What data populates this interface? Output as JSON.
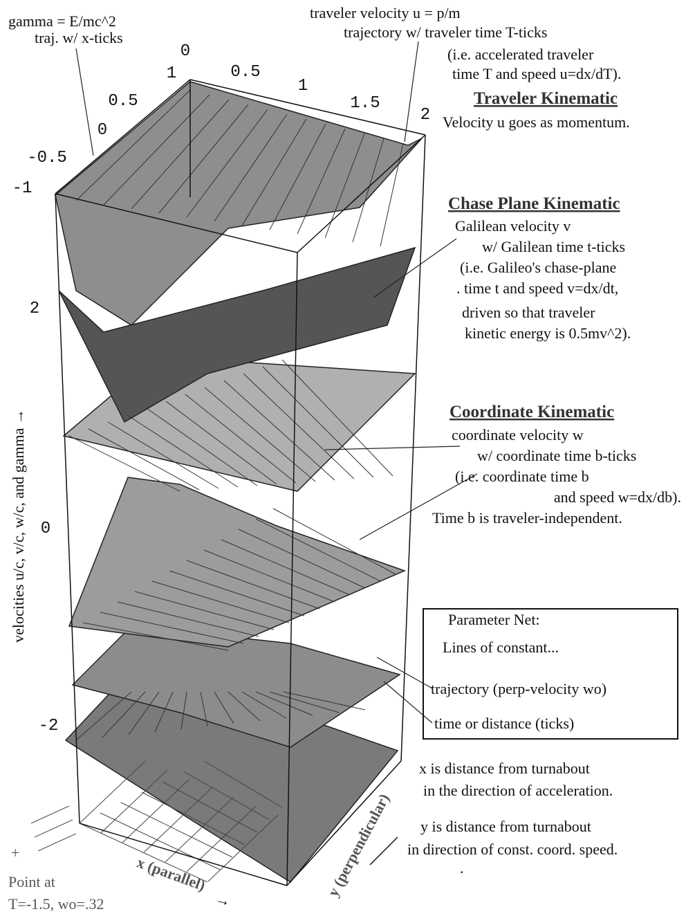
{
  "header": {
    "gamma": [
      "gamma = E/mc^2",
      "traj. w/ x-ticks"
    ],
    "traveler_velocity": [
      "traveler velocity u  = p/m",
      "trajectory w/ traveler time T-ticks",
      "(i.e. accelerated traveler",
      "time T and speed u=dx/dT)."
    ]
  },
  "sections": [
    {
      "title": "Traveler Kinematic",
      "lines": [
        "Velocity u goes as momentum."
      ]
    },
    {
      "title": "Chase Plane Kinematic",
      "lines": [
        "Galilean velocity v",
        "w/ Galilean time t-ticks",
        "(i.e. Galileo's chase-plane",
        ".   time t and speed v=dx/dt,",
        "driven so that traveler",
        "kinetic energy is 0.5mv^2)."
      ]
    },
    {
      "title": "Coordinate Kinematic",
      "lines": [
        "coordinate velocity w",
        "w/ coordinate time b-ticks",
        "(i.e. coordinate time b",
        "and speed w=dx/db).",
        "Time b is traveler-independent."
      ]
    }
  ],
  "legend": {
    "title": "Parameter Net:",
    "subtitle": "Lines of constant...",
    "items": [
      "trajectory (perp-velocity wo)",
      "time or distance (ticks)"
    ]
  },
  "notes": {
    "x": [
      "x is distance from turnabout",
      "in the direction of acceleration."
    ],
    "y": [
      "y is distance from turnabout",
      "in direction of const. coord. speed."
    ],
    "dot": "."
  },
  "axes": {
    "vertical_label": "velocities u/c, v/c, w/c, and gamma →",
    "x_label": "x (parallel)",
    "y_label": "y (perpendicular)",
    "x_arrow": "→",
    "top_ticks": [
      "0",
      "0.5",
      "1",
      "1.5",
      "2"
    ],
    "left_ticks": [
      "1",
      "0.5",
      "0",
      "-0.5",
      "-1"
    ],
    "vertical_ticks": [
      "2",
      "0",
      "-2"
    ]
  },
  "point": {
    "marker": "+",
    "lines": [
      "Point at",
      "T=-1.5, wo=.32"
    ]
  }
}
